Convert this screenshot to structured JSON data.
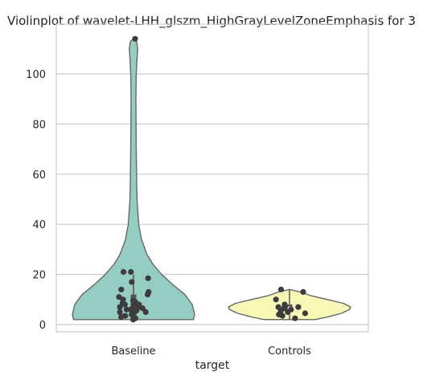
{
  "chart_data": {
    "type": "violin",
    "title": "Violinplot of wavelet-LHH_glszm_HighGrayLevelZoneEmphasis for 3",
    "xlabel": "target",
    "ylabel": "",
    "categories": [
      "Baseline",
      "Controls"
    ],
    "ylim": [
      -2.5,
      120
    ],
    "yticks": [
      0,
      20,
      40,
      60,
      80,
      100
    ],
    "grid": "horizontal",
    "violins": [
      {
        "name": "Baseline",
        "color": "#96cdc2",
        "min": 2,
        "max": 114,
        "median": 7.5,
        "q1": 5,
        "q3": 12,
        "points": [
          2,
          2.5,
          3,
          3.5,
          4,
          4.5,
          5,
          5,
          5.5,
          6,
          6,
          6.5,
          7,
          7,
          7.5,
          8,
          8,
          8.5,
          9,
          9.5,
          10,
          11,
          12,
          13,
          14,
          17,
          18.5,
          21,
          21,
          114
        ]
      },
      {
        "name": "Controls",
        "color": "#f7f8b5",
        "min": 2,
        "max": 14,
        "median": 6.5,
        "q1": 5,
        "q3": 8,
        "points": [
          2.5,
          3.5,
          4,
          4.5,
          5,
          5.5,
          6,
          6.5,
          7,
          7,
          7.5,
          8,
          10,
          13,
          14
        ]
      }
    ]
  }
}
